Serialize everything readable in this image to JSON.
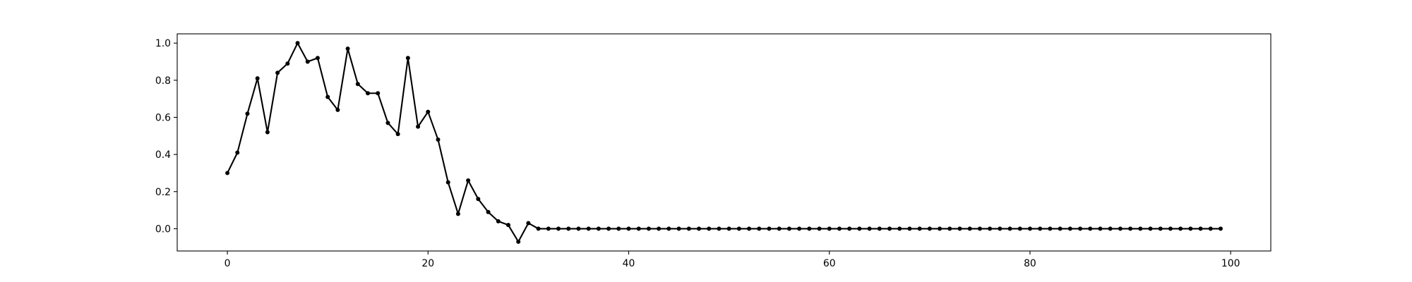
{
  "chart_data": {
    "type": "line",
    "title": "",
    "xlabel": "",
    "ylabel": "",
    "xlim": [
      -5,
      104
    ],
    "ylim": [
      -0.12,
      1.05
    ],
    "xticks": [
      0,
      20,
      40,
      60,
      80,
      100
    ],
    "xtick_labels": [
      "0",
      "20",
      "40",
      "60",
      "80",
      "100"
    ],
    "yticks": [
      0.0,
      0.2,
      0.4,
      0.6,
      0.8,
      1.0
    ],
    "ytick_labels": [
      "0.0",
      "0.2",
      "0.4",
      "0.6",
      "0.8",
      "1.0"
    ],
    "grid": false,
    "legend": "none",
    "colors": {
      "line": "#000000",
      "marker": "#000000",
      "axes": "#000000"
    },
    "series": [
      {
        "marker": "circle",
        "x": [
          0,
          1,
          2,
          3,
          4,
          5,
          6,
          7,
          8,
          9,
          10,
          11,
          12,
          13,
          14,
          15,
          16,
          17,
          18,
          19,
          20,
          21,
          22,
          23,
          24,
          25,
          26,
          27,
          28,
          29,
          30,
          31,
          32,
          33,
          34,
          35,
          36,
          37,
          38,
          39,
          40,
          41,
          42,
          43,
          44,
          45,
          46,
          47,
          48,
          49,
          50,
          51,
          52,
          53,
          54,
          55,
          56,
          57,
          58,
          59,
          60,
          61,
          62,
          63,
          64,
          65,
          66,
          67,
          68,
          69,
          70,
          71,
          72,
          73,
          74,
          75,
          76,
          77,
          78,
          79,
          80,
          81,
          82,
          83,
          84,
          85,
          86,
          87,
          88,
          89,
          90,
          91,
          92,
          93,
          94,
          95,
          96,
          97,
          98,
          99
        ],
        "y": [
          0.3,
          0.41,
          0.62,
          0.81,
          0.52,
          0.84,
          0.89,
          1.0,
          0.9,
          0.92,
          0.71,
          0.64,
          0.97,
          0.78,
          0.73,
          0.73,
          0.57,
          0.51,
          0.92,
          0.55,
          0.63,
          0.48,
          0.25,
          0.08,
          0.26,
          0.16,
          0.09,
          0.04,
          0.02,
          -0.07,
          0.03,
          0.0,
          0.0,
          0.0,
          0.0,
          0.0,
          0.0,
          0.0,
          0.0,
          0.0,
          0.0,
          0.0,
          0.0,
          0.0,
          0.0,
          0.0,
          0.0,
          0.0,
          0.0,
          0.0,
          0.0,
          0.0,
          0.0,
          0.0,
          0.0,
          0.0,
          0.0,
          0.0,
          0.0,
          0.0,
          0.0,
          0.0,
          0.0,
          0.0,
          0.0,
          0.0,
          0.0,
          0.0,
          0.0,
          0.0,
          0.0,
          0.0,
          0.0,
          0.0,
          0.0,
          0.0,
          0.0,
          0.0,
          0.0,
          0.0,
          0.0,
          0.0,
          0.0,
          0.0,
          0.0,
          0.0,
          0.0,
          0.0,
          0.0,
          0.0,
          0.0,
          0.0,
          0.0,
          0.0,
          0.0,
          0.0,
          0.0,
          0.0,
          0.0,
          0.0
        ]
      }
    ]
  }
}
